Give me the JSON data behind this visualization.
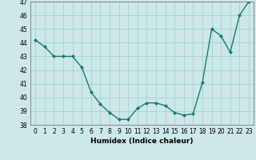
{
  "x": [
    0,
    1,
    2,
    3,
    4,
    5,
    6,
    7,
    8,
    9,
    10,
    11,
    12,
    13,
    14,
    15,
    16,
    17,
    18,
    19,
    20,
    21,
    22,
    23
  ],
  "y": [
    44.2,
    43.7,
    43.0,
    43.0,
    43.0,
    42.2,
    40.4,
    39.5,
    38.9,
    38.4,
    38.4,
    39.2,
    39.6,
    39.6,
    39.4,
    38.9,
    38.7,
    38.8,
    41.1,
    45.0,
    44.5,
    43.3,
    46.0,
    47.0
  ],
  "line_color": "#1a7a6e",
  "marker": "D",
  "marker_size": 2,
  "bg_color": "#cce8e8",
  "grid_color": "#aacfcf",
  "xlabel": "Humidex (Indice chaleur)",
  "ylim": [
    38,
    47
  ],
  "xlim": [
    -0.5,
    23.5
  ],
  "yticks": [
    38,
    39,
    40,
    41,
    42,
    43,
    44,
    45,
    46,
    47
  ],
  "xticks": [
    0,
    1,
    2,
    3,
    4,
    5,
    6,
    7,
    8,
    9,
    10,
    11,
    12,
    13,
    14,
    15,
    16,
    17,
    18,
    19,
    20,
    21,
    22,
    23
  ],
  "tick_fontsize": 5.5,
  "xlabel_fontsize": 6.5,
  "linewidth": 1.0
}
